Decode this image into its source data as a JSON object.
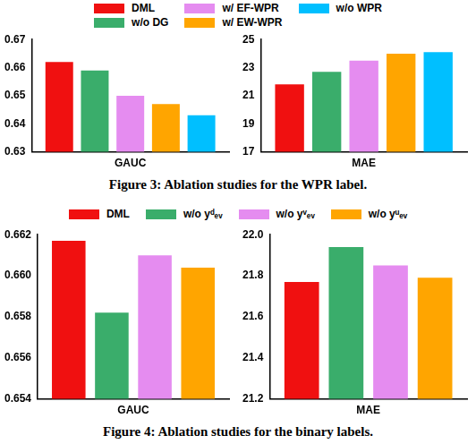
{
  "chart_data": [
    {
      "type": "bar",
      "legend": "top",
      "caption": "Figure 3: Ablation studies for the WPR label.",
      "categories": [
        "GAUC"
      ],
      "series": [
        {
          "name": "DML",
          "color": "#f01010",
          "values": [
            0.662
          ]
        },
        {
          "name": "w/o DG",
          "color": "#3aad6b",
          "values": [
            0.659
          ]
        },
        {
          "name": "w/ EF-WPR",
          "color": "#e58cf0",
          "values": [
            0.65
          ]
        },
        {
          "name": "w/ EW-WPR",
          "color": "#ffa500",
          "values": [
            0.647
          ]
        },
        {
          "name": "w/o WPR",
          "color": "#00bfff",
          "values": [
            0.643
          ]
        }
      ],
      "ylim": [
        0.63,
        0.67
      ],
      "yticks": [
        0.63,
        0.64,
        0.65,
        0.66,
        0.67
      ],
      "grid": false
    },
    {
      "type": "bar",
      "categories": [
        "MAE"
      ],
      "series": [
        {
          "name": "DML",
          "color": "#f01010",
          "values": [
            21.8
          ]
        },
        {
          "name": "w/o DG",
          "color": "#3aad6b",
          "values": [
            22.7
          ]
        },
        {
          "name": "w/ EF-WPR",
          "color": "#e58cf0",
          "values": [
            23.5
          ]
        },
        {
          "name": "w/ EW-WPR",
          "color": "#ffa500",
          "values": [
            24.0
          ]
        },
        {
          "name": "w/o WPR",
          "color": "#00bfff",
          "values": [
            24.1
          ]
        }
      ],
      "ylim": [
        17,
        25
      ],
      "yticks": [
        17,
        19,
        21,
        23,
        25
      ],
      "grid": false
    },
    {
      "type": "bar",
      "legend": "top",
      "caption": "Figure 4: Ablation studies for the binary labels.",
      "categories": [
        "GAUC"
      ],
      "series": [
        {
          "name": "DML",
          "color": "#f01010",
          "values": [
            0.6617
          ]
        },
        {
          "name": "w/o yᵈₑᵥ",
          "color": "#3aad6b",
          "values": [
            0.6582
          ]
        },
        {
          "name": "w/o yᵛₑᵥ",
          "color": "#e58cf0",
          "values": [
            0.661
          ]
        },
        {
          "name": "w/o yᵘₑᵥ",
          "color": "#ffa500",
          "values": [
            0.6604
          ]
        }
      ],
      "ylim": [
        0.654,
        0.662
      ],
      "yticks": [
        0.654,
        0.656,
        0.658,
        {
          "value": 0.66,
          "label": "0.660"
        },
        0.662
      ],
      "grid": false
    },
    {
      "type": "bar",
      "categories": [
        "MAE"
      ],
      "series": [
        {
          "name": "DML",
          "color": "#f01010",
          "values": [
            21.77
          ]
        },
        {
          "name": "w/o yᵈₑᵥ",
          "color": "#3aad6b",
          "values": [
            21.94
          ]
        },
        {
          "name": "w/o yᵛₑᵥ",
          "color": "#e58cf0",
          "values": [
            21.85
          ]
        },
        {
          "name": "w/o yᵘₑᵥ",
          "color": "#ffa500",
          "values": [
            21.79
          ]
        }
      ],
      "ylim": [
        21.2,
        22.0
      ],
      "yticks": [
        21.2,
        21.4,
        21.6,
        21.8,
        {
          "value": 22,
          "label": "22.0"
        }
      ],
      "grid": false
    }
  ]
}
